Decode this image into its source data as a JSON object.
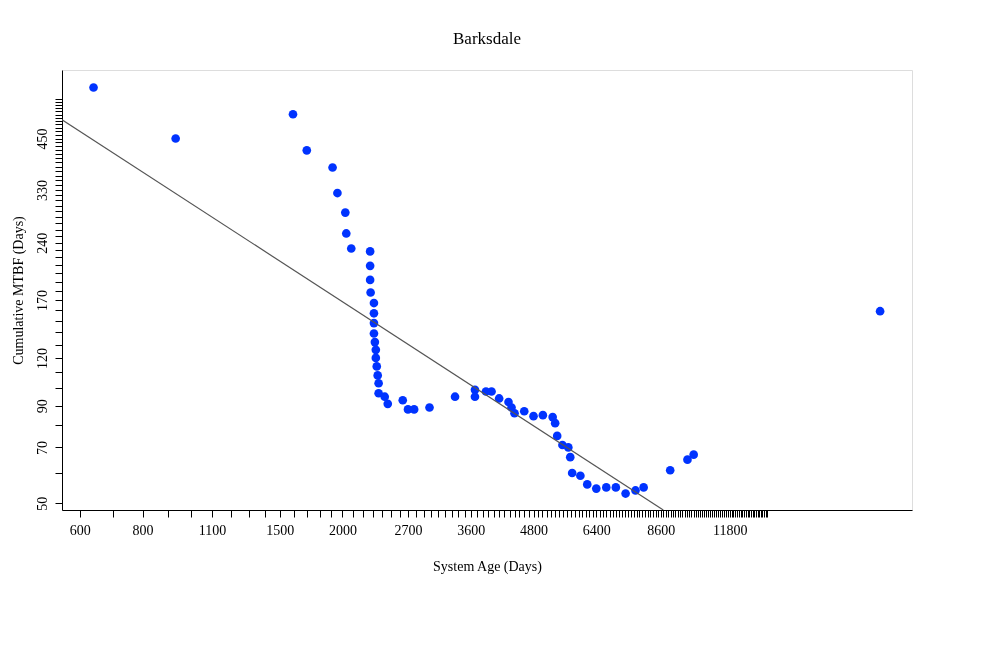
{
  "chart_data": {
    "type": "scatter",
    "title": "Barksdale",
    "xlabel": "System Age (Days)",
    "ylabel": "Cumulative MTBF (Days)",
    "log": "xy",
    "grid": false,
    "marker": "circle",
    "xlim": [
      553,
      27200
    ],
    "ylim": [
      48,
      680
    ],
    "xticks": [
      600,
      {
        "value": 700,
        "label": null
      },
      800,
      {
        "value": 900,
        "label": null
      },
      {
        "value": 1000,
        "label": null
      },
      1100,
      {
        "value": 1200,
        "label": null
      },
      {
        "value": 1300,
        "label": null
      },
      {
        "value": 1400,
        "label": null
      },
      1500,
      {
        "value": 1600,
        "label": null
      },
      {
        "value": 1700,
        "label": null
      },
      {
        "value": 1800,
        "label": null
      },
      {
        "value": 1900,
        "label": null
      },
      2000,
      {
        "value": 2100,
        "label": null
      },
      {
        "value": 2200,
        "label": null
      },
      {
        "value": 2300,
        "label": null
      },
      {
        "value": 2400,
        "label": null
      },
      {
        "value": 2500,
        "label": null
      },
      {
        "value": 2600,
        "label": null
      },
      2700,
      {
        "value": 2800,
        "label": null
      },
      {
        "value": 2900,
        "label": null
      },
      {
        "value": 3000,
        "label": null
      },
      {
        "value": 3100,
        "label": null
      },
      {
        "value": 3200,
        "label": null
      },
      {
        "value": 3300,
        "label": null
      },
      {
        "value": 3400,
        "label": null
      },
      {
        "value": 3500,
        "label": null
      },
      3600,
      {
        "value": 3700,
        "label": null
      },
      {
        "value": 3800,
        "label": null
      },
      {
        "value": 3900,
        "label": null
      },
      {
        "value": 4000,
        "label": null
      },
      {
        "value": 4100,
        "label": null
      },
      {
        "value": 4200,
        "label": null
      },
      {
        "value": 4300,
        "label": null
      },
      {
        "value": 4400,
        "label": null
      },
      {
        "value": 4500,
        "label": null
      },
      {
        "value": 4600,
        "label": null
      },
      {
        "value": 4700,
        "label": null
      },
      4800,
      {
        "value": 4900,
        "label": null
      },
      {
        "value": 5000,
        "label": null
      },
      {
        "value": 5100,
        "label": null
      },
      {
        "value": 5200,
        "label": null
      },
      {
        "value": 5300,
        "label": null
      },
      {
        "value": 5400,
        "label": null
      },
      {
        "value": 5500,
        "label": null
      },
      {
        "value": 5600,
        "label": null
      },
      {
        "value": 5700,
        "label": null
      },
      {
        "value": 5800,
        "label": null
      },
      {
        "value": 5900,
        "label": null
      },
      {
        "value": 6000,
        "label": null
      },
      {
        "value": 6100,
        "label": null
      },
      {
        "value": 6200,
        "label": null
      },
      {
        "value": 6300,
        "label": null
      },
      6400,
      {
        "value": 6500,
        "label": null
      },
      {
        "value": 6600,
        "label": null
      },
      {
        "value": 6700,
        "label": null
      },
      {
        "value": 6800,
        "label": null
      },
      {
        "value": 6900,
        "label": null
      },
      {
        "value": 7000,
        "label": null
      },
      {
        "value": 7100,
        "label": null
      },
      {
        "value": 7200,
        "label": null
      },
      {
        "value": 7300,
        "label": null
      },
      {
        "value": 7400,
        "label": null
      },
      {
        "value": 7500,
        "label": null
      },
      {
        "value": 7600,
        "label": null
      },
      {
        "value": 7700,
        "label": null
      },
      {
        "value": 7800,
        "label": null
      },
      {
        "value": 7900,
        "label": null
      },
      {
        "value": 8000,
        "label": null
      },
      {
        "value": 8100,
        "label": null
      },
      {
        "value": 8200,
        "label": null
      },
      {
        "value": 8300,
        "label": null
      },
      {
        "value": 8400,
        "label": null
      },
      {
        "value": 8500,
        "label": null
      },
      8600,
      {
        "value": 8700,
        "label": null
      },
      {
        "value": 8800,
        "label": null
      },
      {
        "value": 8900,
        "label": null
      },
      {
        "value": 9000,
        "label": null
      },
      {
        "value": 9100,
        "label": null
      },
      {
        "value": 9200,
        "label": null
      },
      {
        "value": 9300,
        "label": null
      },
      {
        "value": 9400,
        "label": null
      },
      {
        "value": 9500,
        "label": null
      },
      {
        "value": 9600,
        "label": null
      },
      {
        "value": 9700,
        "label": null
      },
      {
        "value": 9800,
        "label": null
      },
      {
        "value": 9900,
        "label": null
      },
      {
        "value": 10000,
        "label": null
      },
      {
        "value": 10100,
        "label": null
      },
      {
        "value": 10200,
        "label": null
      },
      {
        "value": 10300,
        "label": null
      },
      {
        "value": 10400,
        "label": null
      },
      {
        "value": 10500,
        "label": null
      },
      {
        "value": 10600,
        "label": null
      },
      {
        "value": 10700,
        "label": null
      },
      {
        "value": 10800,
        "label": null
      },
      {
        "value": 10900,
        "label": null
      },
      {
        "value": 11000,
        "label": null
      },
      {
        "value": 11100,
        "label": null
      },
      {
        "value": 11200,
        "label": null
      },
      {
        "value": 11300,
        "label": null
      },
      {
        "value": 11400,
        "label": null
      },
      {
        "value": 11500,
        "label": null
      },
      {
        "value": 11600,
        "label": null
      },
      {
        "value": 11700,
        "label": null
      },
      11800,
      {
        "value": 11900,
        "label": null
      },
      {
        "value": 12000,
        "label": null
      },
      {
        "value": 12100,
        "label": null
      },
      {
        "value": 12200,
        "label": null
      },
      {
        "value": 12300,
        "label": null
      },
      {
        "value": 12400,
        "label": null
      },
      {
        "value": 12500,
        "label": null
      },
      {
        "value": 12600,
        "label": null
      },
      {
        "value": 12700,
        "label": null
      },
      {
        "value": 12800,
        "label": null
      },
      {
        "value": 12900,
        "label": null
      },
      {
        "value": 13000,
        "label": null
      },
      {
        "value": 13100,
        "label": null
      },
      {
        "value": 13200,
        "label": null
      },
      {
        "value": 13300,
        "label": null
      },
      {
        "value": 13400,
        "label": null
      },
      {
        "value": 13500,
        "label": null
      },
      {
        "value": 13600,
        "label": null
      },
      {
        "value": 13700,
        "label": null
      },
      {
        "value": 13800,
        "label": null
      },
      {
        "value": 13900,
        "label": null
      },
      {
        "value": 14000,
        "label": null
      }
    ],
    "yticks": [
      50,
      {
        "value": 60,
        "label": null
      },
      70,
      {
        "value": 80,
        "label": null
      },
      90,
      {
        "value": 100,
        "label": null
      },
      {
        "value": 110,
        "label": null
      },
      120,
      {
        "value": 130,
        "label": null
      },
      {
        "value": 140,
        "label": null
      },
      {
        "value": 150,
        "label": null
      },
      {
        "value": 160,
        "label": null
      },
      170,
      {
        "value": 180,
        "label": null
      },
      {
        "value": 190,
        "label": null
      },
      {
        "value": 200,
        "label": null
      },
      {
        "value": 210,
        "label": null
      },
      {
        "value": 220,
        "label": null
      },
      {
        "value": 230,
        "label": null
      },
      240,
      {
        "value": 250,
        "label": null
      },
      {
        "value": 260,
        "label": null
      },
      {
        "value": 270,
        "label": null
      },
      {
        "value": 280,
        "label": null
      },
      {
        "value": 290,
        "label": null
      },
      {
        "value": 300,
        "label": null
      },
      {
        "value": 310,
        "label": null
      },
      {
        "value": 320,
        "label": null
      },
      330,
      {
        "value": 340,
        "label": null
      },
      {
        "value": 350,
        "label": null
      },
      {
        "value": 360,
        "label": null
      },
      {
        "value": 370,
        "label": null
      },
      {
        "value": 380,
        "label": null
      },
      {
        "value": 390,
        "label": null
      },
      {
        "value": 400,
        "label": null
      },
      {
        "value": 410,
        "label": null
      },
      {
        "value": 420,
        "label": null
      },
      {
        "value": 430,
        "label": null
      },
      {
        "value": 440,
        "label": null
      },
      450,
      {
        "value": 460,
        "label": null
      },
      {
        "value": 470,
        "label": null
      },
      {
        "value": 480,
        "label": null
      },
      {
        "value": 490,
        "label": null
      },
      {
        "value": 500,
        "label": null
      },
      {
        "value": 510,
        "label": null
      },
      {
        "value": 520,
        "label": null
      },
      {
        "value": 530,
        "label": null
      },
      {
        "value": 540,
        "label": null
      },
      {
        "value": 550,
        "label": null
      },
      {
        "value": 560,
        "label": null
      },
      {
        "value": 570,
        "label": null
      }
    ],
    "series": [
      {
        "color": "#0033ff",
        "x": [
          639,
          931,
          1594,
          1698,
          1911,
          1954,
          2026,
          2035,
          2082,
          2270,
          2270,
          2270,
          2275,
          2310,
          2310,
          2310,
          2310,
          2320,
          2330,
          2330,
          2340,
          2350,
          2360,
          2360,
          2427,
          2461,
          2636,
          2700,
          2777,
          2980,
          3350,
          3670,
          3670,
          3860,
          3960,
          4100,
          4280,
          4340,
          4400,
          4600,
          4800,
          5010,
          5240,
          5300,
          5350,
          5480,
          5630,
          5680,
          5730,
          5950,
          6140,
          6400,
          6700,
          7000,
          7320,
          7660,
          7950,
          8980,
          9720,
          10000,
          23500
        ],
        "values": [
          612,
          450,
          521,
          419,
          378,
          324,
          288,
          254,
          232,
          228,
          209,
          192,
          178,
          167,
          157,
          148,
          139,
          132,
          126,
          120,
          114,
          108,
          103,
          97,
          95,
          91,
          93,
          88,
          88,
          89,
          95,
          99,
          95,
          98,
          98,
          94,
          92,
          89,
          86,
          87,
          84.5,
          85,
          84,
          81,
          75,
          71,
          70,
          66,
          60,
          59,
          56,
          54.6,
          55,
          55,
          53,
          54,
          55,
          61,
          65,
          67,
          159
        ]
      },
      {
        "type": "line",
        "marker": "none",
        "color": "#555555",
        "x": [
          553,
          8700
        ],
        "values": [
          504,
          48
        ]
      }
    ]
  }
}
